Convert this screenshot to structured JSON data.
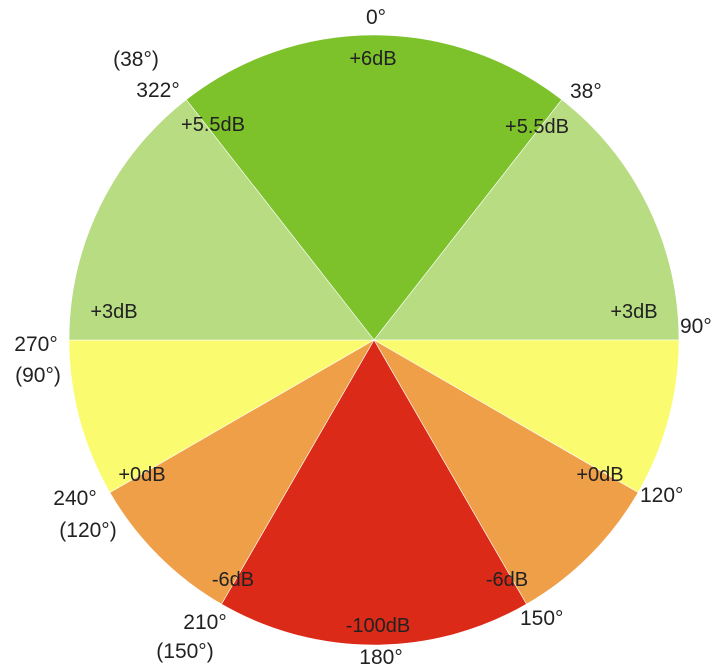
{
  "chart_data": {
    "type": "pie",
    "zones": [
      {
        "from": 322,
        "to": 38,
        "gain": "+6dB",
        "color": "#7dc12b"
      },
      {
        "from": 38,
        "to": 90,
        "gain": "+5.5dB",
        "color": "#b7dc82"
      },
      {
        "from": 90,
        "to": 120,
        "gain": "+3dB",
        "color": "#fafb6e"
      },
      {
        "from": 120,
        "to": 150,
        "gain": "+0dB",
        "color": "#ef9f48"
      },
      {
        "from": 150,
        "to": 210,
        "gain": "-100dB",
        "color": "#dc2a18"
      },
      {
        "from": 210,
        "to": 240,
        "gain": "+0dB",
        "color": "#ef9f48"
      },
      {
        "from": 240,
        "to": 270,
        "gain": "+3dB",
        "color": "#fafb6e"
      },
      {
        "from": 270,
        "to": 322,
        "gain": "+5.5dB",
        "color": "#b7dc82"
      }
    ],
    "angle_labels": {
      "a0": "0°",
      "a38": "38°",
      "a90": "90°",
      "a120": "120°",
      "a150": "150°",
      "a180": "180°",
      "a210": "210°",
      "a210_alt": "(150°)",
      "a240": "240°",
      "a240_alt": "(120°)",
      "a270": "270°",
      "a270_alt": "(90°)",
      "a322": "322°",
      "a322_alt": "(38°)"
    },
    "boundary_gain_labels": {
      "top": "+6dB",
      "upper_right": "+5.5dB",
      "upper_left": "+5.5dB",
      "right_3": "+3dB",
      "left_3": "+3dB",
      "right_0": "+0dB",
      "left_0": "+0dB",
      "right_m6": "-6dB",
      "left_m6": "-6dB",
      "bottom": "-100dB"
    }
  }
}
